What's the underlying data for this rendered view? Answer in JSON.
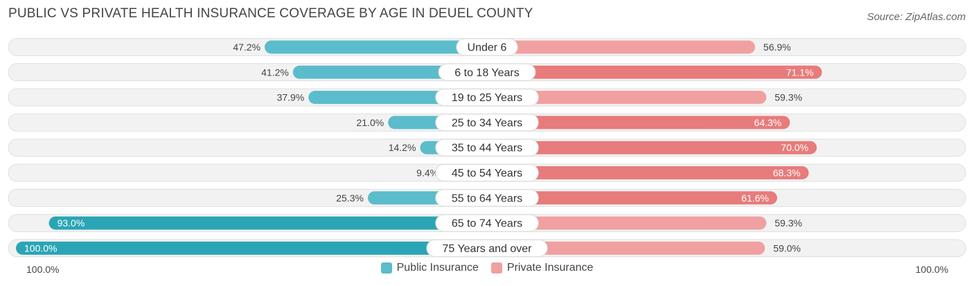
{
  "header": {
    "title": "PUBLIC VS PRIVATE HEALTH INSURANCE COVERAGE BY AGE IN DEUEL COUNTY",
    "source": "Source: ZipAtlas.com"
  },
  "colors": {
    "public": "#5bbccb",
    "public_strong": "#2aa5b5",
    "private": "#f0a0a0",
    "private_strong": "#e87b7b"
  },
  "axis": {
    "left_label": "100.0%",
    "right_label": "100.0%"
  },
  "legend": {
    "public_label": "Public Insurance",
    "private_label": "Private Insurance"
  },
  "chart_data": {
    "type": "bar",
    "orientation": "horizontal-diverging",
    "title": "PUBLIC VS PRIVATE HEALTH INSURANCE COVERAGE BY AGE IN DEUEL COUNTY",
    "categories": [
      "Under 6",
      "6 to 18 Years",
      "19 to 25 Years",
      "25 to 34 Years",
      "35 to 44 Years",
      "45 to 54 Years",
      "55 to 64 Years",
      "65 to 74 Years",
      "75 Years and over"
    ],
    "series": [
      {
        "name": "Public Insurance",
        "side": "left",
        "values": [
          47.2,
          41.2,
          37.9,
          21.0,
          14.2,
          9.4,
          25.3,
          93.0,
          100.0
        ],
        "labels": [
          "47.2%",
          "41.2%",
          "37.9%",
          "21.0%",
          "14.2%",
          "9.4%",
          "25.3%",
          "93.0%",
          "100.0%"
        ]
      },
      {
        "name": "Private Insurance",
        "side": "right",
        "values": [
          56.9,
          71.1,
          59.3,
          64.3,
          70.0,
          68.3,
          61.6,
          59.3,
          59.0
        ],
        "labels": [
          "56.9%",
          "71.1%",
          "59.3%",
          "64.3%",
          "70.0%",
          "68.3%",
          "61.6%",
          "59.3%",
          "59.0%"
        ]
      }
    ],
    "xlim": [
      0,
      100
    ],
    "legend_position": "bottom-center"
  }
}
